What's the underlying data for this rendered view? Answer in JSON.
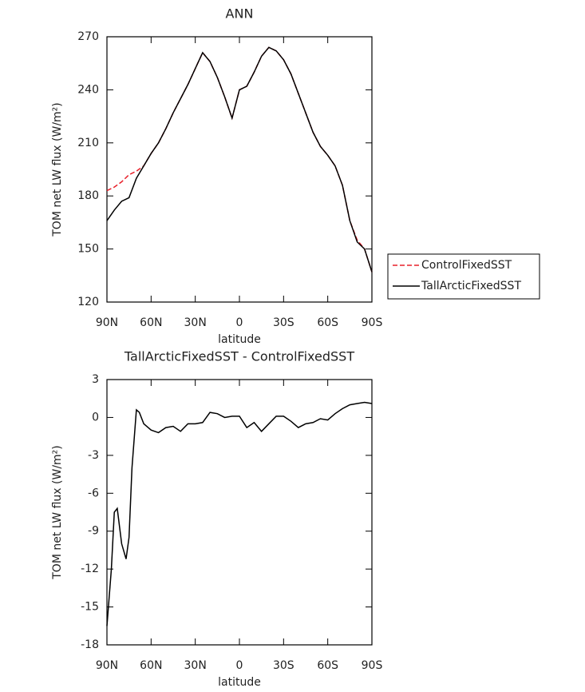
{
  "chart_data": [
    {
      "type": "line",
      "title": "ANN",
      "xlabel": "latitude",
      "ylabel": "TOM net LW flux (W/m²)",
      "x": [
        90,
        85,
        80,
        75,
        70,
        65,
        60,
        55,
        50,
        45,
        40,
        35,
        30,
        25,
        20,
        15,
        10,
        5,
        0,
        -5,
        -10,
        -15,
        -20,
        -25,
        -30,
        -35,
        -40,
        -45,
        -50,
        -55,
        -60,
        -65,
        -70,
        -75,
        -80,
        -85,
        -90
      ],
      "xlim": [
        90,
        -90
      ],
      "xticks": [
        {
          "value": 90,
          "label": "90N"
        },
        {
          "value": 60,
          "label": "60N"
        },
        {
          "value": 30,
          "label": "30N"
        },
        0,
        {
          "value": -30,
          "label": "30S"
        },
        {
          "value": -60,
          "label": "60S"
        },
        {
          "value": -90,
          "label": "90S"
        }
      ],
      "ylim": [
        120,
        270
      ],
      "yticks": [
        120,
        150,
        180,
        210,
        240,
        270
      ],
      "legend": "right",
      "series": [
        {
          "name": "ControlFixedSST",
          "color": "#e8202a",
          "dash": true,
          "values": [
            183,
            185,
            188,
            192,
            194,
            197,
            204,
            210,
            218,
            227,
            235,
            243,
            252,
            261,
            256,
            247,
            236,
            224,
            240,
            242,
            250,
            259,
            264,
            262,
            257,
            249,
            238,
            227,
            216,
            208,
            203,
            197,
            186,
            166,
            155,
            150,
            137
          ]
        },
        {
          "name": "TallArcticFixedSST",
          "color": "#000000",
          "dash": false,
          "values": [
            166,
            172,
            177,
            179,
            190,
            197,
            204,
            210,
            218,
            227,
            235,
            243,
            252,
            261,
            256,
            247,
            236,
            224,
            240,
            242,
            250,
            259,
            264,
            262,
            257,
            249,
            238,
            227,
            216,
            208,
            203,
            197,
            186,
            166,
            154,
            150,
            137
          ]
        }
      ]
    },
    {
      "type": "line",
      "title": "TallArcticFixedSST - ControlFixedSST",
      "xlabel": "latitude",
      "ylabel": "TOM net LW flux (W/m²)",
      "x": [
        90,
        87,
        85,
        83,
        80,
        77,
        75,
        73,
        70,
        68,
        65,
        60,
        55,
        50,
        45,
        40,
        35,
        30,
        25,
        20,
        15,
        10,
        5,
        0,
        -5,
        -10,
        -15,
        -20,
        -25,
        -30,
        -35,
        -40,
        -45,
        -50,
        -55,
        -60,
        -65,
        -70,
        -75,
        -80,
        -85,
        -90
      ],
      "xlim": [
        90,
        -90
      ],
      "xticks": [
        {
          "value": 90,
          "label": "90N"
        },
        {
          "value": 60,
          "label": "60N"
        },
        {
          "value": 30,
          "label": "30N"
        },
        0,
        {
          "value": -30,
          "label": "30S"
        },
        {
          "value": -60,
          "label": "60S"
        },
        {
          "value": -90,
          "label": "90S"
        }
      ],
      "ylim": [
        -18,
        3
      ],
      "yticks": [
        -18,
        -15,
        -12,
        -9,
        -6,
        -3,
        0,
        3
      ],
      "series": [
        {
          "color": "#000000",
          "values": [
            -16.5,
            -12,
            -7.5,
            -7.2,
            -10,
            -11.2,
            -9.5,
            -4,
            0.6,
            0.4,
            -0.5,
            -1.0,
            -1.2,
            -0.8,
            -0.7,
            -1.1,
            -0.5,
            -0.5,
            -0.4,
            0.4,
            0.3,
            0,
            0.1,
            0.1,
            -0.8,
            -0.4,
            -1.1,
            -0.5,
            0.1,
            0.1,
            -0.3,
            -0.8,
            -0.5,
            -0.4,
            -0.1,
            -0.2,
            0.3,
            0.7,
            1.0,
            1.1,
            1.2,
            1.1
          ]
        }
      ]
    }
  ]
}
